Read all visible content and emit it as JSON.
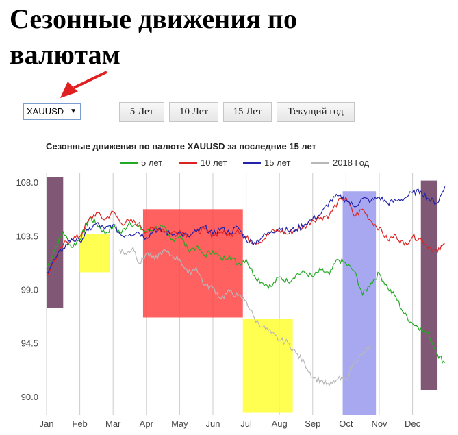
{
  "page": {
    "title": "Сезонные движения по валютам"
  },
  "controls": {
    "symbol_select": {
      "value": "XAUUSD"
    },
    "buttons": [
      "5 Лет",
      "10 Лет",
      "15 Лет",
      "Текущий год"
    ]
  },
  "colors": {
    "green": "#22aa22",
    "red": "#dd2222",
    "blue": "#2222aa",
    "grey": "#b8b8b8",
    "arrow": "#e02020",
    "purple": "#6b3a5e",
    "yellow": "#ffff33",
    "pink": "#ff4444",
    "lavender": "#9999ee"
  },
  "chart_data": {
    "type": "line",
    "title": "Сезонные движения по валюте XAUUSD за последние 15 лет",
    "x_ticks": [
      "Jan",
      "Feb",
      "Mar",
      "Apr",
      "May",
      "Jun",
      "Jul",
      "Aug",
      "Sep",
      "Oct",
      "Nov",
      "Dec"
    ],
    "y_ticks": [
      108.0,
      103.5,
      99.0,
      94.5,
      90.0
    ],
    "ylim": [
      88.5,
      109.5
    ],
    "legend": {
      "position": "top",
      "entries": [
        "5 лет",
        "10 лет",
        "15 лет",
        "2018 Год"
      ]
    },
    "grid": "vertical",
    "series": [
      {
        "name": "5 лет",
        "color": "#22aa22",
        "x": [
          0,
          0.25,
          0.5,
          0.75,
          1,
          1.15,
          1.3,
          1.5,
          1.75,
          2,
          2.25,
          2.5,
          2.75,
          3,
          3.25,
          3.5,
          3.75,
          4,
          4.25,
          4.5,
          4.75,
          5,
          5.25,
          5.5,
          5.75,
          6,
          6.25,
          6.5,
          6.75,
          7,
          7.25,
          7.5,
          7.75,
          8,
          8.25,
          8.5,
          8.75,
          9,
          9.25,
          9.5,
          9.75,
          10,
          10.25,
          10.5,
          10.75,
          11,
          11.25,
          11.5,
          11.75,
          11.97
        ],
        "y": [
          100.8,
          102.4,
          103.9,
          102.6,
          103.3,
          104.1,
          105.1,
          104.6,
          103.8,
          104.3,
          103.8,
          104.7,
          104.3,
          103.9,
          104.2,
          104.3,
          103.2,
          103.6,
          102.4,
          102.6,
          101.9,
          102.3,
          101.6,
          101.9,
          101.2,
          101.6,
          100.2,
          99.6,
          99.3,
          100.1,
          99.7,
          100.3,
          100.5,
          100.1,
          100.7,
          100.3,
          101.6,
          101.2,
          100.6,
          98.6,
          99.6,
          100.4,
          99.2,
          98.4,
          97.0,
          96.2,
          95.8,
          95.2,
          93.6,
          92.9
        ]
      },
      {
        "name": "10 лет",
        "color": "#dd2222",
        "x": [
          0,
          0.25,
          0.5,
          0.75,
          1,
          1.25,
          1.5,
          1.75,
          2,
          2.25,
          2.5,
          2.75,
          3,
          3.25,
          3.5,
          3.75,
          4,
          4.25,
          4.5,
          4.75,
          5,
          5.25,
          5.5,
          5.75,
          6,
          6.25,
          6.5,
          6.75,
          7,
          7.25,
          7.5,
          7.75,
          8,
          8.25,
          8.5,
          8.75,
          9,
          9.25,
          9.5,
          9.75,
          10,
          10.25,
          10.5,
          10.75,
          11,
          11.25,
          11.5,
          11.75,
          11.97
        ],
        "y": [
          100.2,
          101.5,
          102.8,
          103.3,
          103.5,
          104.8,
          105.5,
          104.9,
          105.6,
          104.6,
          104.8,
          104.6,
          103.9,
          104.2,
          104.1,
          103.8,
          104.0,
          103.6,
          103.9,
          104.1,
          103.6,
          103.9,
          103.6,
          104.1,
          103.4,
          103.0,
          103.2,
          103.9,
          104.0,
          103.7,
          104.1,
          104.3,
          104.9,
          105.1,
          105.3,
          106.4,
          106.8,
          105.2,
          105.8,
          104.8,
          104.2,
          103.2,
          103.6,
          102.8,
          103.5,
          103.3,
          102.6,
          102.2,
          102.9
        ]
      },
      {
        "name": "15 лет",
        "color": "#2222aa",
        "x": [
          0,
          0.25,
          0.5,
          0.75,
          1,
          1.25,
          1.5,
          1.75,
          2,
          2.25,
          2.5,
          2.75,
          3,
          3.25,
          3.5,
          3.75,
          4,
          4.25,
          4.5,
          4.75,
          5,
          5.25,
          5.5,
          5.75,
          6,
          6.25,
          6.5,
          6.75,
          7,
          7.25,
          7.5,
          7.75,
          8,
          8.25,
          8.5,
          8.75,
          9,
          9.25,
          9.5,
          9.75,
          10,
          10.25,
          10.5,
          10.75,
          11,
          11.25,
          11.5,
          11.75,
          11.97
        ],
        "y": [
          100.5,
          101.6,
          102.5,
          103.3,
          103.1,
          104.0,
          104.6,
          104.1,
          104.5,
          103.6,
          103.7,
          103.9,
          103.4,
          104.1,
          103.9,
          103.7,
          103.8,
          103.5,
          103.9,
          104.3,
          103.7,
          104.2,
          103.8,
          104.3,
          103.2,
          103.0,
          103.5,
          103.9,
          104.2,
          104.0,
          104.1,
          104.5,
          105.0,
          105.4,
          106.4,
          106.9,
          106.6,
          106.0,
          106.7,
          106.5,
          106.8,
          106.3,
          106.5,
          106.7,
          107.2,
          107.3,
          106.6,
          106.3,
          107.7
        ]
      },
      {
        "name": "2018 Год",
        "color": "#b8b8b8",
        "x": [
          2.2,
          2.4,
          2.6,
          2.8,
          3,
          3.25,
          3.5,
          3.75,
          4,
          4.25,
          4.5,
          4.75,
          5,
          5.25,
          5.5,
          5.75,
          6,
          6.25,
          6.5,
          6.75,
          7,
          7.25,
          7.5,
          7.75,
          8,
          8.25,
          8.5,
          8.75,
          9,
          9.25,
          9.5,
          9.75
        ],
        "y": [
          102.4,
          102.0,
          102.6,
          101.2,
          102.1,
          101.6,
          102.3,
          101.9,
          101.6,
          100.4,
          100.9,
          99.4,
          99.2,
          98.3,
          98.9,
          98.5,
          98.1,
          96.6,
          95.9,
          95.4,
          94.8,
          94.6,
          93.7,
          92.9,
          91.7,
          91.4,
          91.0,
          91.5,
          91.5,
          93.0,
          93.6,
          94.3
        ]
      }
    ],
    "highlights": [
      {
        "color": "#6b3a5e",
        "x0": 0.0,
        "x1": 0.5,
        "y0": 97.5,
        "y1": 108.5
      },
      {
        "color": "#ffff33",
        "x0": 1.0,
        "x1": 1.9,
        "y0": 100.5,
        "y1": 103.7
      },
      {
        "color": "#ff4444",
        "x0": 2.9,
        "x1": 5.9,
        "y0": 96.7,
        "y1": 105.8
      },
      {
        "color": "#ffff33",
        "x0": 5.9,
        "x1": 7.4,
        "y0": 88.7,
        "y1": 96.6
      },
      {
        "color": "#9999ee",
        "x0": 8.9,
        "x1": 9.9,
        "y0": 88.5,
        "y1": 107.3
      },
      {
        "color": "#6b3a5e",
        "x0": 11.25,
        "x1": 11.75,
        "y0": 90.6,
        "y1": 108.2
      }
    ]
  }
}
